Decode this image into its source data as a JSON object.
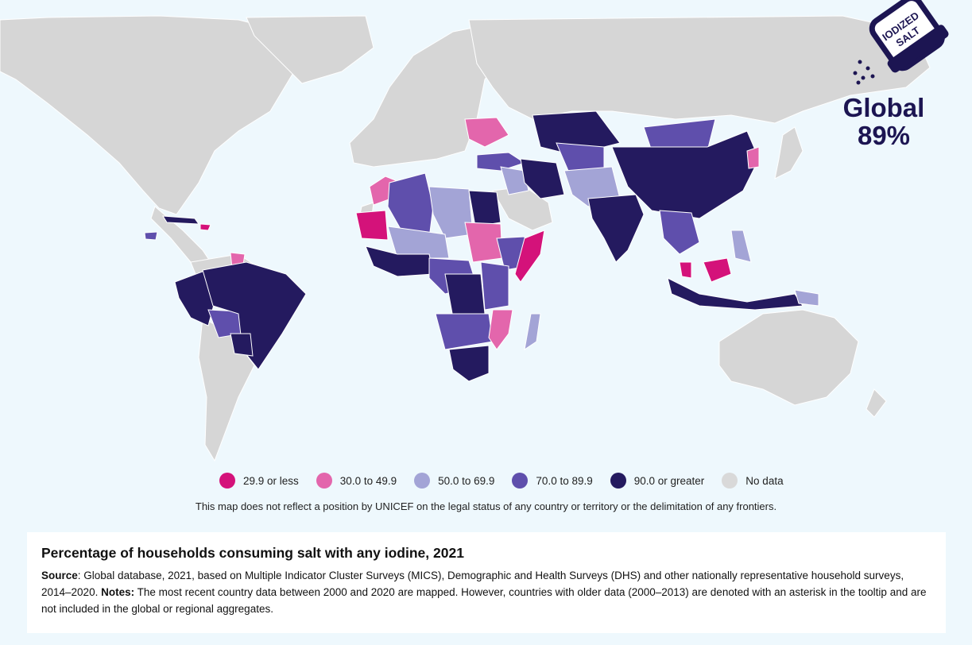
{
  "legend": [
    {
      "label": "29.9 or less",
      "color": "#d4127a"
    },
    {
      "label": "30.0 to 49.9",
      "color": "#e366ac"
    },
    {
      "label": "50.0 to 69.9",
      "color": "#a3a4d6"
    },
    {
      "label": "70.0 to 89.9",
      "color": "#5f4fac"
    },
    {
      "label": "90.0 or greater",
      "color": "#241a5f"
    },
    {
      "label": "No data",
      "color": "#d9d9d9"
    }
  ],
  "colors": {
    "ocean": "#eef8fd",
    "no_data_land": "#d6d6d6",
    "border": "#ffffff",
    "global_text": "#1c1552"
  },
  "badge": {
    "line1": "IODIZED",
    "line2": "SALT",
    "icon": "salt-shaker-icon"
  },
  "global": {
    "label": "Global",
    "value": "89%"
  },
  "disclaimer": "This map does not reflect a position by UNICEF on the legal status of any country or territory or the delimitation of any frontiers.",
  "info": {
    "title": "Percentage of households consuming salt with any iodine,  2021",
    "source_label": "Source",
    "source_text": ": Global database, 2021, based on Multiple Indicator Cluster Surveys (MICS), Demographic and Health Surveys (DHS) and other nationally representative household surveys, 2014–2020.  ",
    "notes_label": "Notes:",
    "notes_text": " The most recent country data between 2000 and 2020 are mapped. However, countries with older data (2000–2013) are denoted with an asterisk in the tooltip and are not included in the global or regional aggregates."
  }
}
